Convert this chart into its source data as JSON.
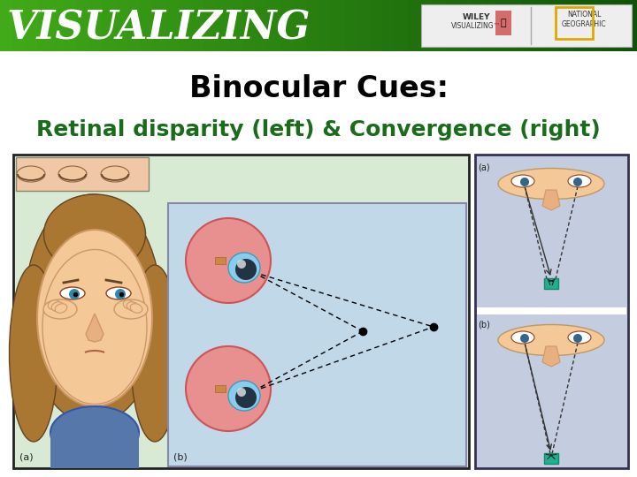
{
  "title": "Binocular Cues:",
  "subtitle": "Retinal disparity (left) & Convergence (right)",
  "title_fontsize": 24,
  "subtitle_fontsize": 18,
  "title_color": "#000000",
  "subtitle_color": "#1a6b1a",
  "header_color_left": "#4aaa20",
  "header_color_right": "#1a5a0a",
  "header_text": "VISUALIZING",
  "header_text_color": "#ffffff",
  "header_text_fontsize": 32,
  "bg_color": "#ffffff",
  "left_outer_bg": "#d8ead4",
  "left_outer_border": "#222222",
  "eyes_strip_bg": "#f0c8a8",
  "face_bg": "#d8ead4",
  "inner_panel_bg": "#c0d8e8",
  "inner_panel_border": "#8888aa",
  "right_panel_bg": "#c4cce0",
  "right_panel_border": "#333355",
  "teal_color": "#20b090",
  "face_skin": "#f5c898",
  "face_hair": "#aa7733",
  "face_hair_dark": "#664422",
  "eyeball_color": "#e08080",
  "iris_color": "#88bbdd",
  "divider_color": "#ffffff",
  "wiley_box_bg": "#eeeeee",
  "small_label_color": "#222222"
}
